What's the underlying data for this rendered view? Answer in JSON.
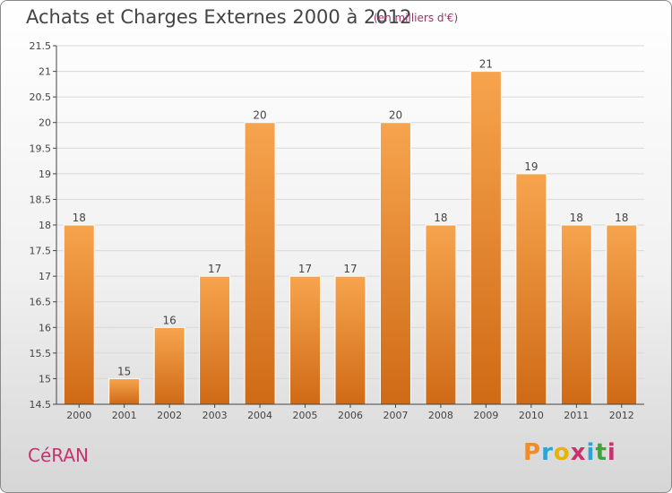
{
  "header": {
    "title": "Achats et Charges Externes 2000 à 2012",
    "subtitle": "(en milliers d'€)"
  },
  "footer": {
    "location": "CéRAN",
    "logo_text": "Proxiti",
    "logo_colors": [
      "#f28c28",
      "#2aa5d8",
      "#e8b400",
      "#c8326e",
      "#2aa5d8",
      "#3ba53b",
      "#c8326e"
    ]
  },
  "colors": {
    "bar_top": "#f7a44e",
    "bar_bottom": "#cf6a16",
    "grid": "#d8d8d8",
    "axis": "#444444"
  },
  "chart_data": {
    "type": "bar",
    "title": "Achats et Charges Externes 2000 à 2012",
    "categories": [
      "2000",
      "2001",
      "2002",
      "2003",
      "2004",
      "2005",
      "2006",
      "2007",
      "2008",
      "2009",
      "2010",
      "2011",
      "2012"
    ],
    "values": [
      18,
      15,
      16,
      17,
      20,
      17,
      17,
      20,
      18,
      21,
      19,
      18,
      18
    ],
    "data_labels": [
      "18",
      "15",
      "16",
      "17",
      "20",
      "17",
      "17",
      "20",
      "18",
      "21",
      "19",
      "18",
      "18"
    ],
    "ylim": [
      14.5,
      21.5
    ],
    "yticks": [
      14.5,
      15,
      15.5,
      16,
      16.5,
      17,
      17.5,
      18,
      18.5,
      19,
      19.5,
      20,
      20.5,
      21,
      21.5
    ],
    "ytick_labels": [
      "14.5",
      "15",
      "15.5",
      "16",
      "16.5",
      "17",
      "17.5",
      "18",
      "18.5",
      "19",
      "19.5",
      "20",
      "20.5",
      "21",
      "21.5"
    ],
    "xlabel": "",
    "ylabel": "",
    "grid": true
  }
}
